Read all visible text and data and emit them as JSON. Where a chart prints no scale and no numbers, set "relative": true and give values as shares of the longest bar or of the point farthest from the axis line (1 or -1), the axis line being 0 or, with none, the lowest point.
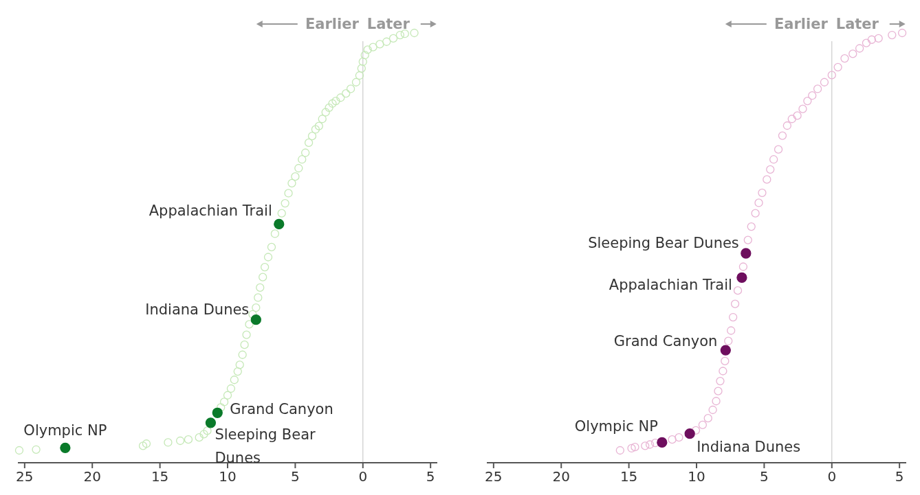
{
  "chart_data": [
    {
      "type": "scatter",
      "relative": true,
      "xlim": [
        25.5,
        -5.5
      ],
      "xticks": [
        25,
        20,
        15,
        10,
        5,
        0,
        {
          "value": -5,
          "label": "5"
        }
      ],
      "marker": "circle",
      "ref_lines": [
        {
          "axis": "x",
          "value": 0,
          "color": "#cccccc"
        }
      ],
      "annotations": [
        "Earlier",
        "Later",
        {
          "text": "Appalachian Trail",
          "x": 6.2,
          "y": 0.542
        },
        {
          "text": "Indiana Dunes",
          "x": 7.9,
          "y": 0.313
        },
        {
          "text": "Grand Canyon",
          "x": 10.75,
          "y": 0.09
        },
        {
          "text": "Sleeping Bear Dunes",
          "x": 11.25,
          "y": 0.066
        },
        {
          "text": "Olympic NP",
          "x": 22.0,
          "y": 0.006
        }
      ],
      "series": [
        {
          "color": "#c5e8b7",
          "x": [
            25.4,
            24.15,
            16.25,
            16.0,
            14.4,
            13.5,
            12.9,
            12.1,
            11.75,
            11.5,
            10.5,
            10.25,
            10.0,
            9.75,
            9.5,
            9.25,
            9.1,
            8.9,
            8.75,
            8.6,
            8.4,
            8.15,
            7.9,
            7.75,
            7.6,
            7.4,
            7.25,
            7.0,
            6.75,
            6.5,
            6.0,
            5.75,
            5.5,
            5.25,
            5.0,
            4.75,
            4.5,
            4.25,
            4.0,
            3.75,
            3.5,
            3.25,
            3.0,
            2.75,
            2.5,
            2.25,
            2.0,
            1.65,
            1.25,
            0.9,
            0.5,
            0.25,
            0.1,
            0,
            -0.15,
            -0.35,
            -0.75,
            -1.25,
            -1.75,
            -2.25,
            -2.75,
            -3.1,
            -3.8
          ],
          "values": [
            0,
            0.002,
            0.011,
            0.016,
            0.019,
            0.023,
            0.026,
            0.031,
            0.039,
            0.047,
            0.103,
            0.116,
            0.132,
            0.148,
            0.169,
            0.189,
            0.205,
            0.229,
            0.253,
            0.277,
            0.302,
            0.326,
            0.342,
            0.366,
            0.39,
            0.415,
            0.439,
            0.463,
            0.487,
            0.519,
            0.568,
            0.592,
            0.616,
            0.64,
            0.656,
            0.676,
            0.697,
            0.713,
            0.737,
            0.753,
            0.769,
            0.777,
            0.794,
            0.81,
            0.821,
            0.831,
            0.837,
            0.845,
            0.855,
            0.866,
            0.882,
            0.898,
            0.915,
            0.931,
            0.947,
            0.96,
            0.966,
            0.973,
            0.979,
            0.987,
            0.995,
            0.998,
            1
          ]
        },
        {
          "color": "#0a7a2a",
          "x": [
            6.2,
            7.9,
            10.75,
            11.25,
            22.0
          ],
          "values": [
            0.542,
            0.313,
            0.09,
            0.066,
            0.006
          ]
        }
      ]
    },
    {
      "type": "scatter",
      "relative": true,
      "xlim": [
        25.5,
        -5.5
      ],
      "xticks": [
        25,
        20,
        15,
        10,
        5,
        0,
        {
          "value": -5,
          "label": "5"
        }
      ],
      "marker": "circle",
      "ref_lines": [
        {
          "axis": "x",
          "value": 0,
          "color": "#cccccc"
        }
      ],
      "annotations": [
        "Earlier",
        "Later",
        {
          "text": "Sleeping Bear Dunes",
          "x": 6.35,
          "y": 0.472
        },
        {
          "text": "Appalachian Trail",
          "x": 6.65,
          "y": 0.414
        },
        {
          "text": "Grand Canyon",
          "x": 7.85,
          "y": 0.24
        },
        {
          "text": "Olympic NP",
          "x": 12.55,
          "y": 0.019
        },
        {
          "text": "Indiana Dunes",
          "x": 10.5,
          "y": 0.04
        }
      ],
      "series": [
        {
          "color": "#e8b4d4",
          "x": [
            15.65,
            14.8,
            14.55,
            13.8,
            13.45,
            13.05,
            11.8,
            11.3,
            10.05,
            9.55,
            9.15,
            8.8,
            8.55,
            8.4,
            8.25,
            8.05,
            7.9,
            7.65,
            7.45,
            7.3,
            7.15,
            6.95,
            6.55,
            6.2,
            5.95,
            5.65,
            5.4,
            5.15,
            4.8,
            4.55,
            4.3,
            3.95,
            3.65,
            3.3,
            2.95,
            2.55,
            2.15,
            1.8,
            1.45,
            1.05,
            0.55,
            0,
            -0.45,
            -0.95,
            -1.55,
            -2.05,
            -2.55,
            -2.95,
            -3.45,
            -4.45,
            -5.2
          ],
          "values": [
            0,
            0.005,
            0.008,
            0.011,
            0.014,
            0.018,
            0.026,
            0.031,
            0.048,
            0.061,
            0.077,
            0.097,
            0.118,
            0.142,
            0.166,
            0.19,
            0.214,
            0.262,
            0.287,
            0.319,
            0.351,
            0.383,
            0.44,
            0.504,
            0.536,
            0.568,
            0.593,
            0.617,
            0.649,
            0.673,
            0.697,
            0.721,
            0.754,
            0.778,
            0.794,
            0.802,
            0.818,
            0.837,
            0.85,
            0.866,
            0.882,
            0.899,
            0.918,
            0.939,
            0.95,
            0.963,
            0.976,
            0.984,
            0.987,
            0.995,
            1
          ]
        },
        {
          "color": "#6e0e5e",
          "x": [
            6.35,
            6.65,
            7.85,
            12.55,
            10.5
          ],
          "values": [
            0.472,
            0.414,
            0.24,
            0.019,
            0.04
          ]
        }
      ]
    }
  ]
}
